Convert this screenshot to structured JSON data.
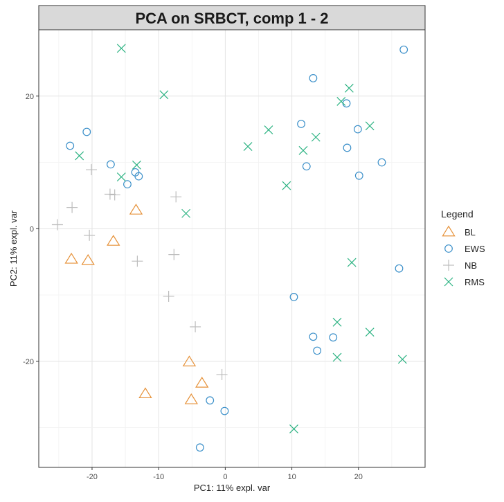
{
  "chart_data": {
    "type": "scatter",
    "title": "PCA on SRBCT, comp 1 - 2",
    "xlabel": "PC1: 11% expl. var",
    "ylabel": "PC2: 11% expl. var",
    "xlim": [
      -28,
      30
    ],
    "ylim": [
      -36,
      30
    ],
    "x_ticks": [
      -20,
      -10,
      0,
      10,
      20
    ],
    "y_ticks": [
      -20,
      0,
      20
    ],
    "grid": true,
    "legend": {
      "title": "Legend",
      "position": "right"
    },
    "series": [
      {
        "name": "BL",
        "marker": "triangle",
        "color": "#E69138",
        "points": [
          {
            "x": -23.1,
            "y": -4.6
          },
          {
            "x": -20.6,
            "y": -4.8
          },
          {
            "x": -16.8,
            "y": -1.9
          },
          {
            "x": -13.4,
            "y": 2.8
          },
          {
            "x": -5.4,
            "y": -20.1
          },
          {
            "x": -3.5,
            "y": -23.3
          },
          {
            "x": -12.0,
            "y": -24.9
          },
          {
            "x": -5.1,
            "y": -25.8
          }
        ]
      },
      {
        "name": "EWS",
        "marker": "circle",
        "color": "#3A8FC9",
        "points": [
          {
            "x": -23.3,
            "y": 12.5
          },
          {
            "x": -20.8,
            "y": 14.6
          },
          {
            "x": -17.2,
            "y": 9.7
          },
          {
            "x": -13.5,
            "y": 8.5
          },
          {
            "x": -13.0,
            "y": 7.9
          },
          {
            "x": -14.7,
            "y": 6.7
          },
          {
            "x": -2.3,
            "y": -25.9
          },
          {
            "x": -0.1,
            "y": -27.5
          },
          {
            "x": -3.8,
            "y": -33.0
          },
          {
            "x": 13.2,
            "y": 22.7
          },
          {
            "x": 11.4,
            "y": 15.8
          },
          {
            "x": 12.2,
            "y": 9.4
          },
          {
            "x": 18.2,
            "y": 18.9
          },
          {
            "x": 19.9,
            "y": 15.0
          },
          {
            "x": 18.3,
            "y": 12.2
          },
          {
            "x": 20.1,
            "y": 8.0
          },
          {
            "x": 23.5,
            "y": 10.0
          },
          {
            "x": 26.8,
            "y": 27.0
          },
          {
            "x": 26.1,
            "y": -6.0
          },
          {
            "x": 10.3,
            "y": -10.3
          },
          {
            "x": 13.2,
            "y": -16.3
          },
          {
            "x": 13.8,
            "y": -18.4
          },
          {
            "x": 16.2,
            "y": -16.4
          }
        ]
      },
      {
        "name": "NB",
        "marker": "plus",
        "color": "#BDBDBD",
        "points": [
          {
            "x": -25.2,
            "y": 0.6
          },
          {
            "x": -23.0,
            "y": 3.2
          },
          {
            "x": -20.1,
            "y": 8.9
          },
          {
            "x": -20.4,
            "y": -1.0
          },
          {
            "x": -17.3,
            "y": 5.2
          },
          {
            "x": -16.6,
            "y": 5.1
          },
          {
            "x": -13.2,
            "y": -4.9
          },
          {
            "x": -7.4,
            "y": 4.8
          },
          {
            "x": -7.7,
            "y": -3.9
          },
          {
            "x": -8.5,
            "y": -10.2
          },
          {
            "x": -4.5,
            "y": -14.8
          },
          {
            "x": -0.5,
            "y": -22.0
          }
        ]
      },
      {
        "name": "RMS",
        "marker": "cross",
        "color": "#2DB383",
        "points": [
          {
            "x": -15.6,
            "y": 27.2
          },
          {
            "x": -9.2,
            "y": 20.2
          },
          {
            "x": -21.9,
            "y": 11.0
          },
          {
            "x": -15.6,
            "y": 7.8
          },
          {
            "x": -13.3,
            "y": 9.6
          },
          {
            "x": -5.9,
            "y": 2.3
          },
          {
            "x": 3.4,
            "y": 12.4
          },
          {
            "x": 6.5,
            "y": 14.9
          },
          {
            "x": 9.2,
            "y": 6.5
          },
          {
            "x": 11.7,
            "y": 11.8
          },
          {
            "x": 13.6,
            "y": 13.8
          },
          {
            "x": 17.4,
            "y": 19.2
          },
          {
            "x": 18.6,
            "y": 21.2
          },
          {
            "x": 21.7,
            "y": 15.5
          },
          {
            "x": 19.0,
            "y": -5.1
          },
          {
            "x": 16.8,
            "y": -14.1
          },
          {
            "x": 16.8,
            "y": -19.4
          },
          {
            "x": 21.7,
            "y": -15.6
          },
          {
            "x": 26.6,
            "y": -19.7
          },
          {
            "x": 10.3,
            "y": -30.2
          }
        ]
      }
    ]
  }
}
